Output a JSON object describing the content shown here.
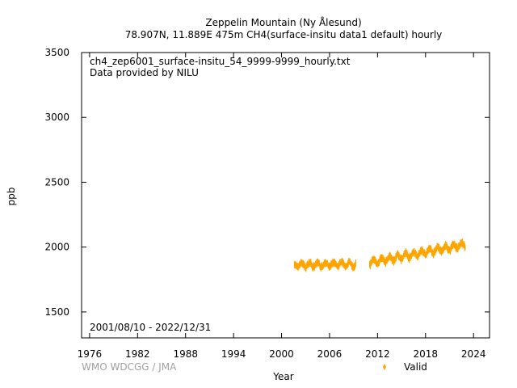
{
  "chart_data": {
    "type": "scatter",
    "title": "Zeppelin Mountain (Ny Ålesund)",
    "subtitle": "78.907N, 11.889E 475m     CH4(surface-insitu data1 default) hourly",
    "xlabel": "Year",
    "ylabel": "ppb",
    "xlim": [
      1975,
      2026
    ],
    "ylim": [
      1300,
      3500
    ],
    "x_ticks": [
      1976,
      1982,
      1988,
      1994,
      2000,
      2006,
      2012,
      2018,
      2024
    ],
    "y_ticks": [
      1500,
      2000,
      2500,
      3000,
      3500
    ],
    "grid": false,
    "legend": "bottom-right",
    "file_label": "ch4_zep6001_surface-insitu_54_9999-9999_hourly.txt",
    "provider_label": "Data provided by NILU",
    "date_range_label": "2001/08/10 - 2022/12/31",
    "credit": "WMO WDCGG / JMA",
    "series": [
      {
        "name": "Valid",
        "color": "#ffa500",
        "segments": [
          {
            "x": [
              2001.6,
              2009.3
            ],
            "mean": 1862,
            "trend": 0.8,
            "seasonal_amp": 18,
            "band": 38
          },
          {
            "x": [
              2011.0,
              2023.0
            ],
            "mean_start": 1880,
            "mean_end": 2020,
            "seasonal_amp": 20,
            "band": 40
          }
        ]
      }
    ]
  }
}
